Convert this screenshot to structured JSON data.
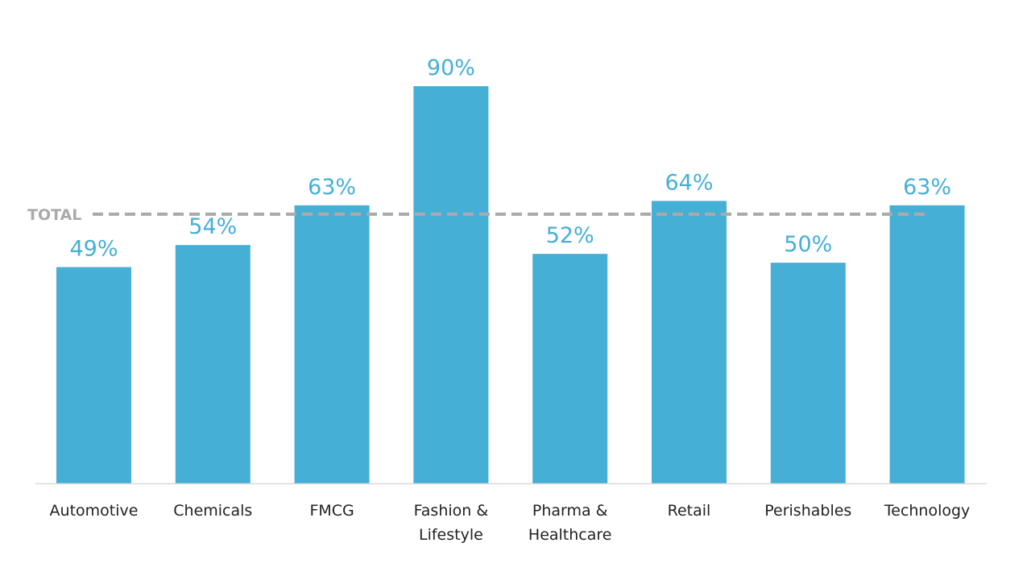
{
  "chart_data": {
    "type": "bar",
    "categories": [
      [
        "Automotive"
      ],
      [
        "Chemicals"
      ],
      [
        "FMCG"
      ],
      [
        "Fashion &",
        "Lifestyle"
      ],
      [
        "Pharma &",
        "Healthcare"
      ],
      [
        "Retail"
      ],
      [
        "Perishables"
      ],
      [
        "Technology"
      ]
    ],
    "values": [
      49,
      54,
      63,
      90,
      52,
      64,
      50,
      63
    ],
    "data_labels": [
      "49%",
      "54%",
      "63%",
      "90%",
      "52%",
      "64%",
      "50%",
      "63%"
    ],
    "reference_line": {
      "label": "TOTAL",
      "value": 61,
      "style": "dashed",
      "color": "#aaaaaa"
    },
    "ylim": [
      0,
      100
    ],
    "grid": false,
    "bar_color": "#45afd6",
    "title": "",
    "xlabel": "",
    "ylabel": ""
  }
}
